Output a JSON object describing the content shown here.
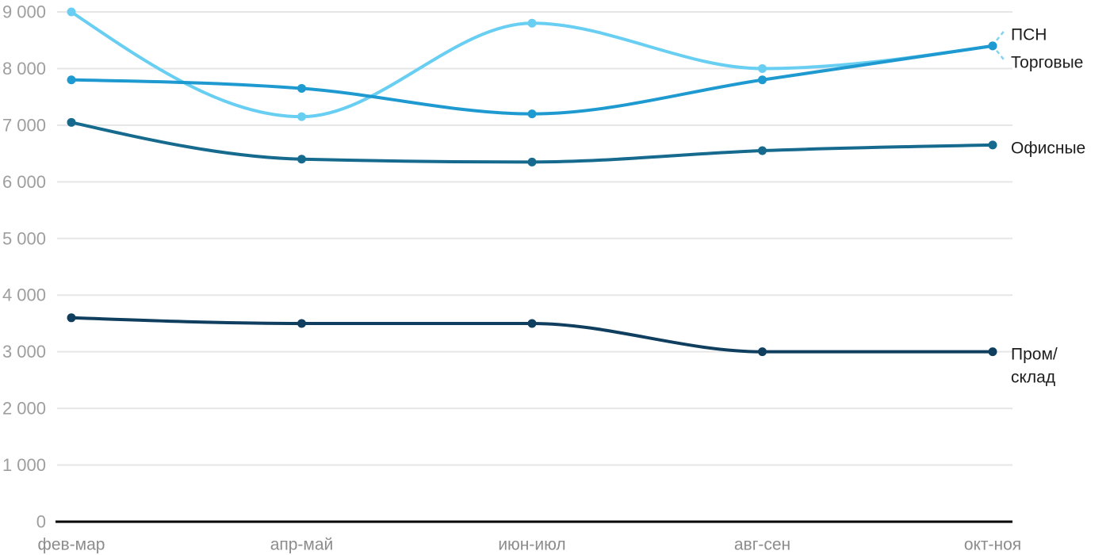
{
  "chart_data": {
    "type": "line",
    "curve": "monotone",
    "title": "",
    "xlabel": "",
    "ylabel": "",
    "categories": [
      "фев-мар",
      "апр-май",
      "июн-июл",
      "авг-сен",
      "окт-ноя"
    ],
    "series": [
      {
        "name": "ПСН",
        "color": "#68cef2",
        "values": [
          9000,
          7150,
          8800,
          8000,
          8400
        ]
      },
      {
        "name": "Торговые",
        "color": "#1e9ad0",
        "values": [
          7800,
          7650,
          7200,
          7800,
          8400
        ]
      },
      {
        "name": "Офисные",
        "color": "#156a8d",
        "values": [
          7050,
          6400,
          6350,
          6550,
          6650
        ]
      },
      {
        "name": "Пром/склад",
        "color": "#103e5f",
        "values": [
          3600,
          3500,
          3500,
          3000,
          3000
        ],
        "label_lines": [
          "Пром/",
          "склад"
        ]
      }
    ],
    "ylim": [
      0,
      9000
    ],
    "y_tick_step": 1000,
    "y_tick_labels": [
      "0",
      "1 000",
      "2 000",
      "3 000",
      "4 000",
      "5 000",
      "6 000",
      "7 000",
      "8 000",
      "9 000"
    ],
    "grid": true,
    "legend_position": "end-of-line-labels"
  },
  "palette": {
    "background": "#ffffff",
    "gridline": "#e6e6e6",
    "axis_line": "#000000",
    "y_tick_text": "#9e9e9e",
    "x_tick_text": "#8c8c8c",
    "series_label_text": "#1d1d1d",
    "leader_dash": "#85d3f2"
  }
}
